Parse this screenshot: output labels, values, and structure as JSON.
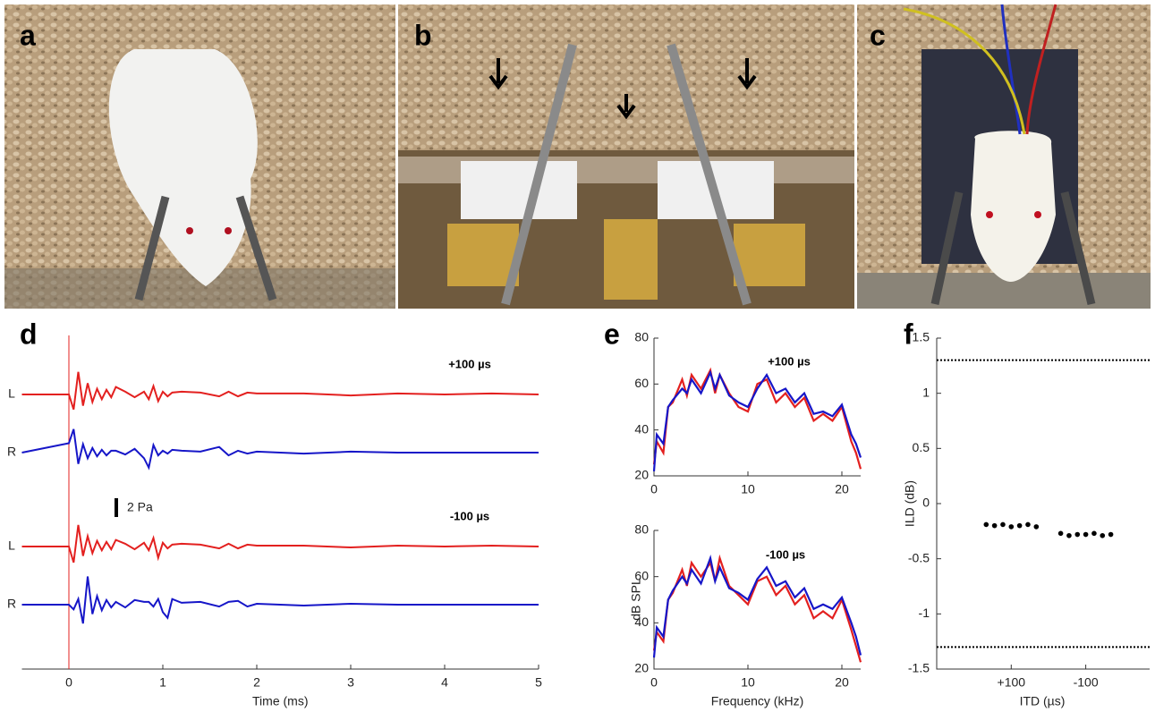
{
  "photos": [
    {
      "label": "a"
    },
    {
      "label": "b"
    },
    {
      "label": "c"
    }
  ],
  "chart_data": [
    {
      "type": "waveform",
      "label": "d",
      "xlabel": "Time (ms)",
      "xlim": [
        -0.5,
        5
      ],
      "xticks": [
        0,
        1,
        2,
        3,
        4,
        5
      ],
      "x": [
        -0.5,
        0,
        0.05,
        0.1,
        0.15,
        0.2,
        0.25,
        0.3,
        0.35,
        0.4,
        0.45,
        0.5,
        0.6,
        0.7,
        0.8,
        0.85,
        0.9,
        0.95,
        1.0,
        1.05,
        1.1,
        1.2,
        1.4,
        1.6,
        1.7,
        1.8,
        1.9,
        2.0,
        2.5,
        3.0,
        3.5,
        4.0,
        4.5,
        5.0
      ],
      "series": [
        {
          "name": "L",
          "color": "#e3201f",
          "values": [
            0,
            0,
            -1.6,
            2.4,
            -1.2,
            1.2,
            -0.8,
            0.6,
            -0.5,
            0.5,
            -0.3,
            0.8,
            0.3,
            -0.3,
            0.3,
            -0.5,
            0.9,
            -0.7,
            0.3,
            -0.2,
            0.2,
            0.3,
            0.2,
            -0.2,
            0.3,
            -0.2,
            0.2,
            0.1,
            0.1,
            -0.1,
            0.1,
            0,
            0.1,
            0
          ]
        },
        {
          "name": "R",
          "color": "#1616c8",
          "values": [
            0,
            1.0,
            2.5,
            -1.2,
            0.9,
            -0.6,
            0.5,
            -0.4,
            0.3,
            -0.3,
            0.2,
            0.2,
            -0.2,
            0.4,
            -0.6,
            -1.6,
            0.8,
            -0.3,
            0.2,
            -0.1,
            0.3,
            0.2,
            0.1,
            0.6,
            -0.3,
            0.2,
            -0.1,
            0.1,
            -0.1,
            0.1,
            0,
            0,
            0,
            0
          ]
        },
        {
          "name": "L",
          "color": "#e3201f",
          "values": [
            0,
            0,
            -1.7,
            2.3,
            -1.0,
            1.1,
            -0.7,
            0.6,
            -0.4,
            0.5,
            -0.3,
            0.7,
            0.3,
            -0.3,
            0.4,
            -0.4,
            0.9,
            -1.2,
            0.4,
            -0.2,
            0.2,
            0.3,
            0.2,
            -0.2,
            0.3,
            -0.2,
            0.2,
            0.1,
            0.1,
            -0.1,
            0.1,
            0,
            0.1,
            0
          ]
        },
        {
          "name": "R",
          "color": "#1616c8",
          "values": [
            0,
            0,
            -0.5,
            0.6,
            -2.0,
            3.0,
            -1.0,
            0.9,
            -0.6,
            0.5,
            -0.3,
            0.3,
            -0.3,
            0.5,
            0.3,
            0.3,
            -0.2,
            0.6,
            -0.8,
            -1.4,
            0.6,
            0.2,
            0.3,
            -0.2,
            0.3,
            0.4,
            -0.2,
            0.1,
            -0.1,
            0.1,
            0,
            0,
            0,
            0
          ]
        }
      ],
      "annotations": [
        "+100 µs",
        "-100 µs"
      ],
      "scale_bar": {
        "value": 2,
        "label": "2 Pa"
      }
    },
    {
      "type": "line",
      "label": "e",
      "annotation": "+100 µs",
      "xlim": [
        0,
        22
      ],
      "xticks": [
        0,
        10,
        20
      ],
      "ylim": [
        20,
        80
      ],
      "yticks": [
        20,
        40,
        60,
        80
      ],
      "x": [
        0,
        0.3,
        1,
        1.5,
        2,
        3,
        3.5,
        4,
        5,
        6,
        6.5,
        7,
        8,
        9,
        10,
        11,
        12,
        13,
        14,
        15,
        16,
        17,
        18,
        19,
        20,
        21,
        21.5,
        22
      ],
      "series": [
        {
          "color": "#e3201f",
          "values": [
            25,
            35,
            30,
            50,
            52,
            62,
            55,
            64,
            58,
            66,
            56,
            64,
            56,
            50,
            48,
            60,
            62,
            52,
            56,
            50,
            54,
            44,
            47,
            44,
            50,
            35,
            30,
            23
          ]
        },
        {
          "color": "#1616c8",
          "values": [
            22,
            38,
            34,
            50,
            53,
            58,
            56,
            62,
            56,
            65,
            58,
            64,
            55,
            52,
            50,
            58,
            64,
            56,
            58,
            52,
            56,
            47,
            48,
            46,
            51,
            38,
            34,
            28
          ]
        }
      ]
    },
    {
      "type": "line",
      "annotation": "-100 µs",
      "xlabel": "Frequency (kHz)",
      "ylabel": "dB SPL",
      "xlim": [
        0,
        22
      ],
      "xticks": [
        0,
        10,
        20
      ],
      "ylim": [
        20,
        80
      ],
      "yticks": [
        20,
        40,
        60,
        80
      ],
      "x": [
        0,
        0.3,
        1,
        1.5,
        2,
        3,
        3.5,
        4,
        5,
        6,
        6.5,
        7,
        8,
        9,
        10,
        11,
        12,
        13,
        14,
        15,
        16,
        17,
        18,
        19,
        20,
        21,
        21.5,
        22
      ],
      "series": [
        {
          "color": "#e3201f",
          "values": [
            28,
            36,
            32,
            50,
            53,
            63,
            56,
            66,
            60,
            66,
            58,
            68,
            56,
            52,
            48,
            58,
            60,
            52,
            56,
            48,
            52,
            42,
            45,
            42,
            50,
            37,
            30,
            23
          ]
        },
        {
          "color": "#1616c8",
          "values": [
            25,
            38,
            34,
            50,
            54,
            60,
            57,
            63,
            57,
            68,
            58,
            64,
            55,
            53,
            50,
            59,
            64,
            56,
            58,
            51,
            55,
            46,
            48,
            46,
            51,
            40,
            34,
            26
          ]
        }
      ]
    },
    {
      "type": "scatter",
      "label": "f",
      "xlabel": "ITD (µs)",
      "ylabel": "ILD (dB)",
      "ylim": [
        -1.5,
        1.5
      ],
      "yticks": [
        -1.5,
        -1,
        -0.5,
        0,
        0.5,
        1,
        1.5
      ],
      "categories": [
        "+100",
        "-100"
      ],
      "color": "#000000",
      "points": [
        [
          -0.19,
          -0.2,
          -0.19,
          -0.21,
          -0.2,
          -0.19,
          -0.21
        ],
        [
          -0.27,
          -0.29,
          -0.28,
          -0.28,
          -0.27,
          -0.29,
          -0.28
        ]
      ],
      "reference_lines": [
        1.3,
        -1.3
      ]
    }
  ]
}
